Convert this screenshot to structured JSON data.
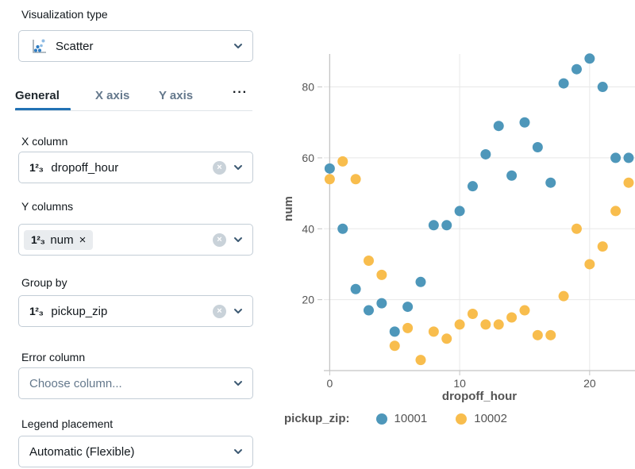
{
  "panel": {
    "visualization_type": {
      "label": "Visualization type",
      "value": "Scatter"
    },
    "tabs": [
      {
        "label": "General",
        "active": true
      },
      {
        "label": "X axis",
        "active": false
      },
      {
        "label": "Y axis",
        "active": false
      },
      {
        "label": "···",
        "active": false
      }
    ],
    "fields": {
      "x_column": {
        "label": "X column",
        "value": "dropoff_hour"
      },
      "y_columns": {
        "label": "Y columns",
        "chip_value": "num"
      },
      "group_by": {
        "label": "Group by",
        "value": "pickup_zip"
      },
      "error_column": {
        "label": "Error column",
        "placeholder": "Choose column..."
      },
      "legend_placement": {
        "label": "Legend placement",
        "value": "Automatic (Flexible)"
      }
    }
  },
  "icons": {
    "number_type": "1²₃",
    "remove": "×",
    "clear": "×"
  },
  "colors": {
    "accent": "#2272B4",
    "inactive_tab": "#64788C",
    "field_border": "#C3CDD6",
    "grid": "#E8E8E8",
    "zeroline": "#C4C4C4",
    "tick_text": "#545454"
  },
  "chart_data": {
    "type": "scatter",
    "x": [
      0,
      1,
      2,
      3,
      4,
      5,
      6,
      7,
      8,
      9,
      10,
      11,
      12,
      13,
      14,
      15,
      16,
      17,
      18,
      19,
      20,
      21,
      22,
      23
    ],
    "series": [
      {
        "name": "10001",
        "color": "#4E97BA",
        "values": [
          57,
          40,
          23,
          17,
          19,
          11,
          18,
          25,
          41,
          41,
          45,
          52,
          61,
          69,
          55,
          70,
          63,
          53,
          81,
          85,
          88,
          80,
          60,
          60
        ]
      },
      {
        "name": "10002",
        "color": "#F8BD4D",
        "values": [
          54,
          59,
          54,
          31,
          27,
          7,
          12,
          3,
          11,
          9,
          13,
          16,
          13,
          13,
          15,
          17,
          10,
          10,
          21,
          40,
          30,
          35,
          45,
          53
        ]
      }
    ],
    "xlabel": "dropoff_hour",
    "ylabel": "num",
    "legend_title": "pickup_zip:",
    "legend_position": "bottom",
    "grid": true,
    "xticks": [
      0,
      10,
      20
    ],
    "yticks": [
      20,
      40,
      60,
      80
    ],
    "xlim": [
      -0.45,
      23.49
    ],
    "ylim": [
      0,
      89.3
    ]
  }
}
